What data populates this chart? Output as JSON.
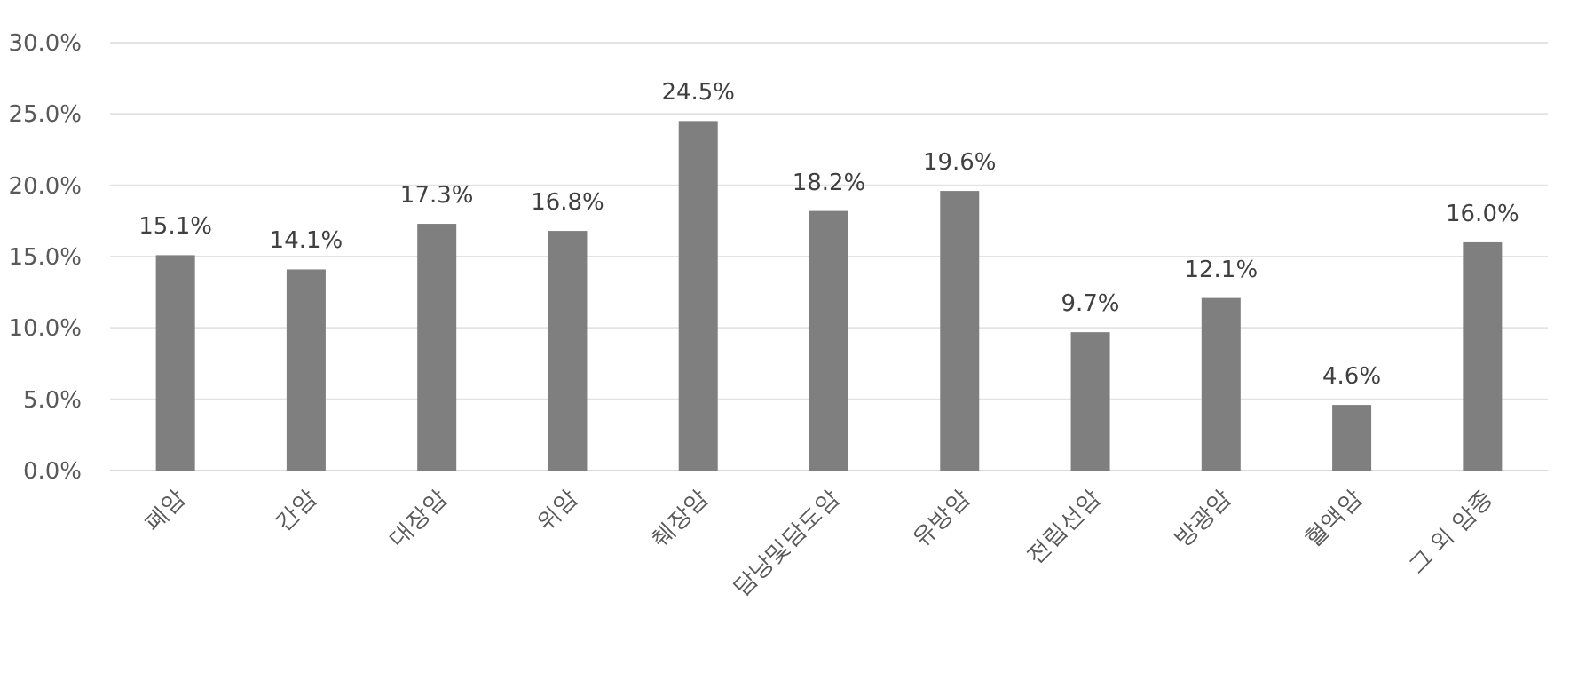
{
  "chart_data": {
    "type": "bar",
    "categories": [
      "폐암",
      "간암",
      "대장암",
      "위암",
      "췌장암",
      "담낭및담도암",
      "유방암",
      "전립선암",
      "방광암",
      "혈액암",
      "그 외 암종"
    ],
    "values": [
      15.1,
      14.1,
      17.3,
      16.8,
      24.5,
      18.2,
      19.6,
      9.7,
      12.1,
      4.6,
      16.0
    ],
    "value_labels": [
      "15.1%",
      "14.1%",
      "17.3%",
      "16.8%",
      "24.5%",
      "18.2%",
      "19.6%",
      "9.7%",
      "12.1%",
      "4.6%",
      "16.0%"
    ],
    "color": "#7f7f7f",
    "ylim": [
      0,
      30
    ],
    "yticks": [
      {
        "value": 0,
        "label": "0.0%"
      },
      {
        "value": 5,
        "label": "5.0%"
      },
      {
        "value": 10,
        "label": "10.0%"
      },
      {
        "value": 15,
        "label": "15.0%"
      },
      {
        "value": 20,
        "label": "20.0%"
      },
      {
        "value": 25,
        "label": "25.0%"
      },
      {
        "value": 30,
        "label": "30.0%"
      }
    ],
    "grid": "y"
  }
}
